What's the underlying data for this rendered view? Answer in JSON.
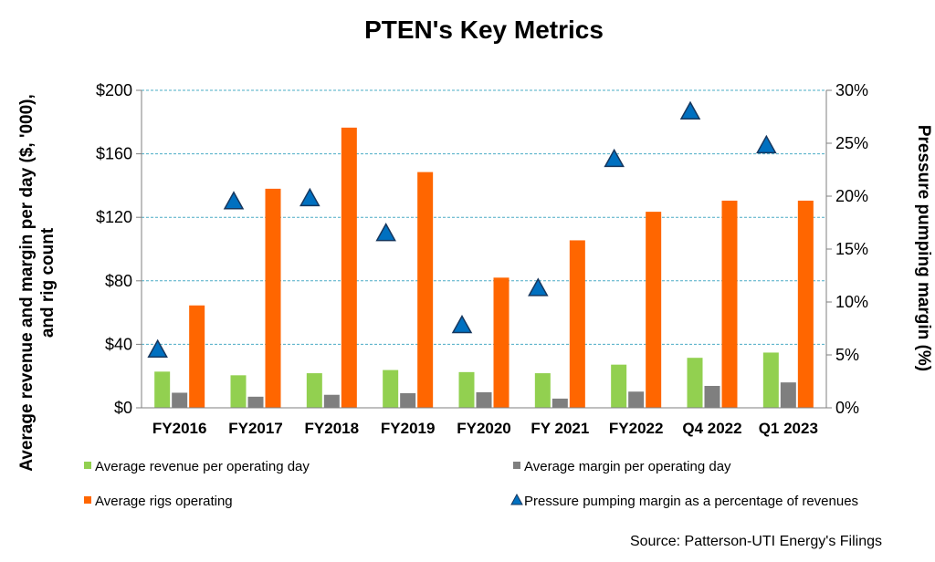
{
  "chart_data": {
    "type": "bar",
    "title": "PTEN's Key Metrics",
    "ylabel_left": [
      "Average revenue and margin per day ($, '000),",
      "and rig count"
    ],
    "ylabel_right": "Pressure pumping margin (%)",
    "categories": [
      "FY2016",
      "FY2017",
      "FY2018",
      "FY2019",
      "FY2020",
      "FY 2021",
      "FY2022",
      "Q4 2022",
      "Q1 2023"
    ],
    "ylim_left": [
      0,
      200
    ],
    "yticks_left": [
      "$0",
      "$40",
      "$80",
      "$120",
      "$160",
      "$200"
    ],
    "ylim_right": [
      0,
      30
    ],
    "yticks_right": [
      "0%",
      "5%",
      "10%",
      "15%",
      "20%",
      "25%",
      "30%"
    ],
    "grid": true,
    "legend_position": "bottom",
    "series": [
      {
        "name": "Average revenue per operating day",
        "kind": "bar",
        "axis": "left",
        "color": "#92d050",
        "values": [
          22.8,
          20.5,
          21.8,
          23.8,
          22.5,
          21.8,
          27.2,
          31.5,
          34.8
        ]
      },
      {
        "name": "Average margin per operating day",
        "kind": "bar",
        "axis": "left",
        "color": "#7f7f7f",
        "values": [
          9.5,
          7.0,
          8.2,
          9.2,
          9.8,
          5.8,
          10.2,
          13.8,
          16.0
        ]
      },
      {
        "name": "Average rigs operating",
        "kind": "bar",
        "axis": "left",
        "color": "#ff6600",
        "values": [
          64.5,
          138,
          176.5,
          148.5,
          82,
          105.5,
          123.5,
          130.5,
          130.5
        ]
      },
      {
        "name": "Pressure pumping margin as a percentage of revenues",
        "kind": "marker",
        "axis": "right",
        "color": "#0070c0",
        "values": [
          5.5,
          19.5,
          19.8,
          16.5,
          7.8,
          11.3,
          23.5,
          28.0,
          24.8
        ]
      }
    ],
    "source": "Source: Patterson-UTI Energy's Filings"
  }
}
